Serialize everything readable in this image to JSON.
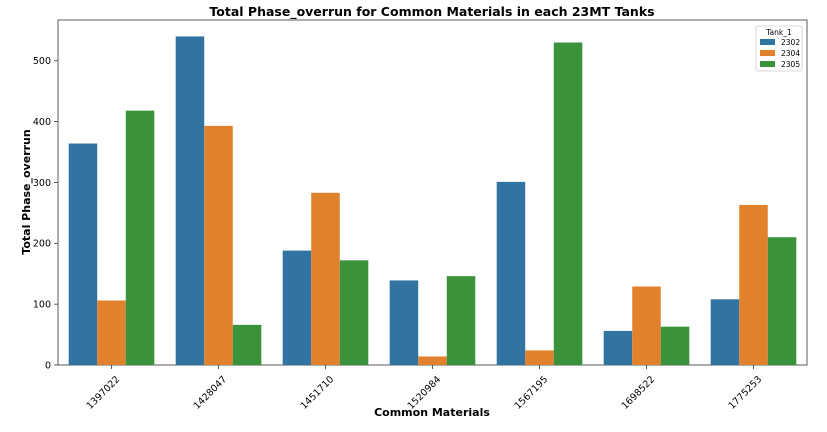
{
  "chart_data": {
    "type": "bar",
    "title": "Total Phase_overrun for Common Materials in each 23MT Tanks",
    "xlabel": "Common Materials",
    "ylabel": "Total Phase_overrun",
    "categories": [
      "1397022",
      "1428047",
      "1451710",
      "1520984",
      "1567195",
      "1698522",
      "1775253"
    ],
    "series": [
      {
        "name": "2302",
        "color": "#3274a1",
        "values": [
          364,
          540,
          188,
          139,
          301,
          56,
          108
        ]
      },
      {
        "name": "2304",
        "color": "#e1812c",
        "values": [
          106,
          393,
          283,
          14,
          24,
          129,
          263
        ]
      },
      {
        "name": "2305",
        "color": "#3a923a",
        "values": [
          418,
          66,
          172,
          146,
          530,
          63,
          210
        ]
      }
    ],
    "ylim": [
      0,
      567
    ],
    "yticks": [
      0,
      100,
      200,
      300,
      400,
      500
    ],
    "grid": false,
    "legend": {
      "title": "Tank_1",
      "position": "top-right"
    }
  }
}
